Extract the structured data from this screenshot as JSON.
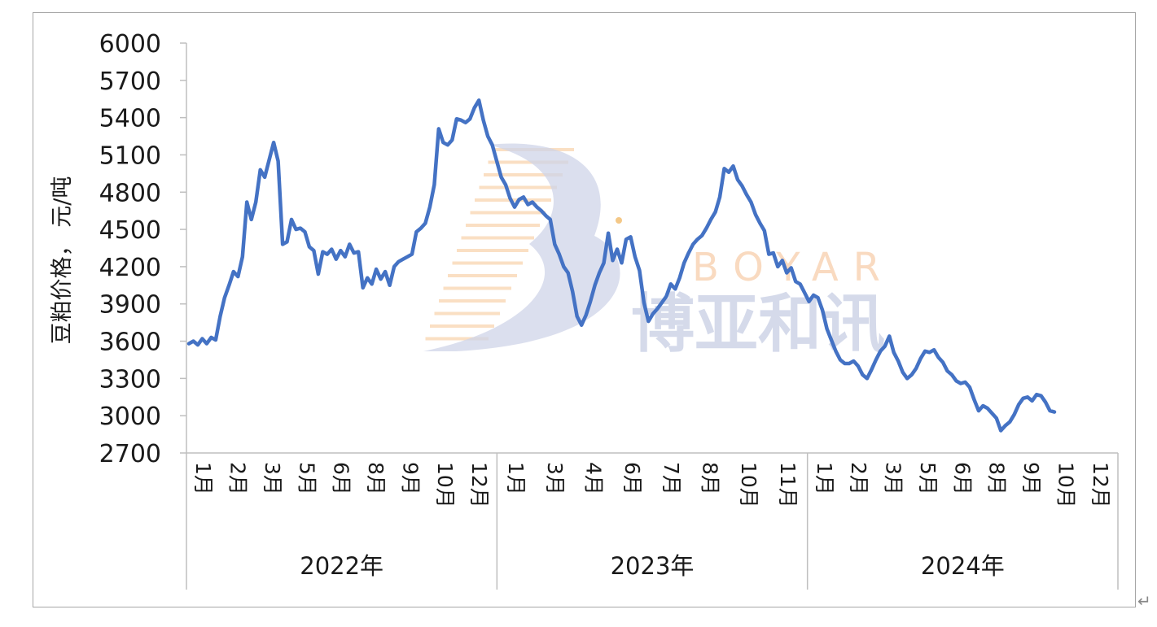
{
  "watermark": {
    "letters": "BOYAR",
    "chinese": "博亚和讯"
  },
  "corner_mark": "↵",
  "chart_data": {
    "type": "line",
    "ylabel": "豆粕价格， 元/吨",
    "ylim": [
      2700,
      6000
    ],
    "yticks": [
      6000,
      5700,
      5400,
      5100,
      4800,
      4500,
      4200,
      3900,
      3600,
      3300,
      3000,
      2700
    ],
    "years": [
      {
        "label": "2022年",
        "months": [
          "1月",
          "2月",
          "3月",
          "5月",
          "6月",
          "8月",
          "9月",
          "10月",
          "12月"
        ]
      },
      {
        "label": "2023年",
        "months": [
          "1月",
          "3月",
          "4月",
          "6月",
          "7月",
          "8月",
          "10月",
          "11月"
        ]
      },
      {
        "label": "2024年",
        "months": [
          "1月",
          "2月",
          "3月",
          "5月",
          "6月",
          "8月",
          "9月",
          "10月",
          "12月"
        ]
      }
    ],
    "grid": false,
    "legend": "none",
    "line_color": "#4472c4",
    "series": [
      {
        "values": [
          3580,
          3600,
          3570,
          3620,
          3580,
          3630,
          3610,
          3800,
          3950,
          4050,
          4160,
          4120,
          4280,
          4720,
          4580,
          4720,
          4980,
          4920,
          5060,
          5200,
          5050,
          4380,
          4400,
          4580,
          4500,
          4510,
          4480,
          4360,
          4330,
          4140,
          4320,
          4300,
          4340,
          4260,
          4330,
          4280,
          4380,
          4310,
          4320,
          4030,
          4110,
          4060,
          4180,
          4100,
          4160,
          4050,
          4200,
          4240,
          4260,
          4280,
          4300,
          4480,
          4510,
          4550,
          4680,
          4860,
          5310,
          5200,
          5180,
          5220,
          5390,
          5380,
          5360,
          5390,
          5480,
          5540,
          5380,
          5250,
          5180,
          5050,
          4920,
          4860,
          4750,
          4680,
          4740,
          4760,
          4700,
          4720,
          4680,
          4650,
          4610,
          4580,
          4380,
          4300,
          4200,
          4150,
          4000,
          3800,
          3730,
          3810,
          3920,
          4050,
          4150,
          4230,
          4470,
          4250,
          4340,
          4230,
          4420,
          4440,
          4280,
          4170,
          3910,
          3760,
          3820,
          3860,
          3910,
          3960,
          4060,
          4020,
          4110,
          4230,
          4310,
          4380,
          4420,
          4450,
          4510,
          4580,
          4640,
          4760,
          4990,
          4960,
          5010,
          4900,
          4850,
          4780,
          4720,
          4620,
          4550,
          4490,
          4300,
          4310,
          4200,
          4250,
          4150,
          4190,
          4080,
          4060,
          3990,
          3920,
          3970,
          3950,
          3850,
          3700,
          3610,
          3520,
          3450,
          3420,
          3420,
          3440,
          3400,
          3330,
          3300,
          3370,
          3450,
          3520,
          3560,
          3640,
          3510,
          3440,
          3350,
          3300,
          3330,
          3380,
          3460,
          3520,
          3510,
          3530,
          3470,
          3430,
          3360,
          3330,
          3280,
          3260,
          3270,
          3230,
          3130,
          3040,
          3080,
          3060,
          3020,
          2980,
          2880,
          2920,
          2950,
          3010,
          3090,
          3140,
          3150,
          3120,
          3170,
          3160,
          3110,
          3040,
          3030
        ]
      }
    ]
  }
}
